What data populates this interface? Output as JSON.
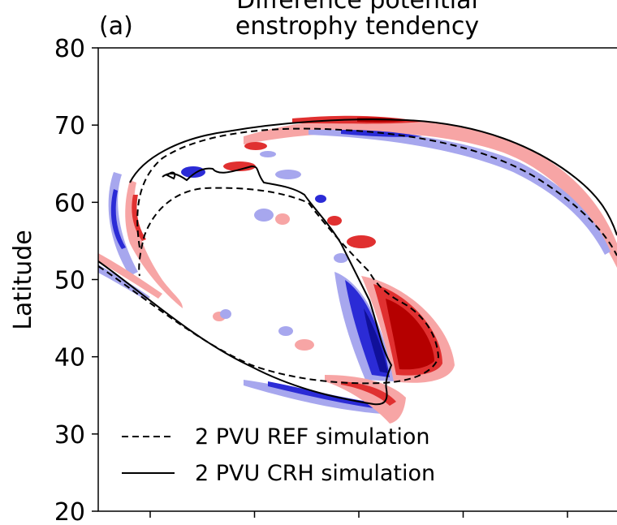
{
  "chart_data": {
    "type": "heatmap",
    "panel_label": "(a)",
    "title": "Difference potential enstrophy tendency",
    "title_lines": [
      "Difference potential",
      "enstrophy tendency"
    ],
    "xlabel": "",
    "ylabel": "Latitude",
    "ylim": [
      20,
      80
    ],
    "yticks": [
      20,
      30,
      40,
      50,
      60,
      70,
      80
    ],
    "ytick_labels": [
      "20",
      "30",
      "40",
      "50",
      "60",
      "70",
      "80"
    ],
    "x_tick_count": 5,
    "grid": false,
    "legend_position": "bottom-left",
    "legend": [
      {
        "label": "2 PVU REF simulation",
        "style": "dashed"
      },
      {
        "label": "2 PVU CRH simulation",
        "style": "solid"
      }
    ],
    "colors": {
      "positive_dark": "#b50000",
      "positive_mid": "#e03030",
      "positive_light": "#f7a5a5",
      "negative_dark": "#10109a",
      "negative_mid": "#2b2bd6",
      "negative_light": "#a7a7ee",
      "contour": "#000000"
    }
  }
}
